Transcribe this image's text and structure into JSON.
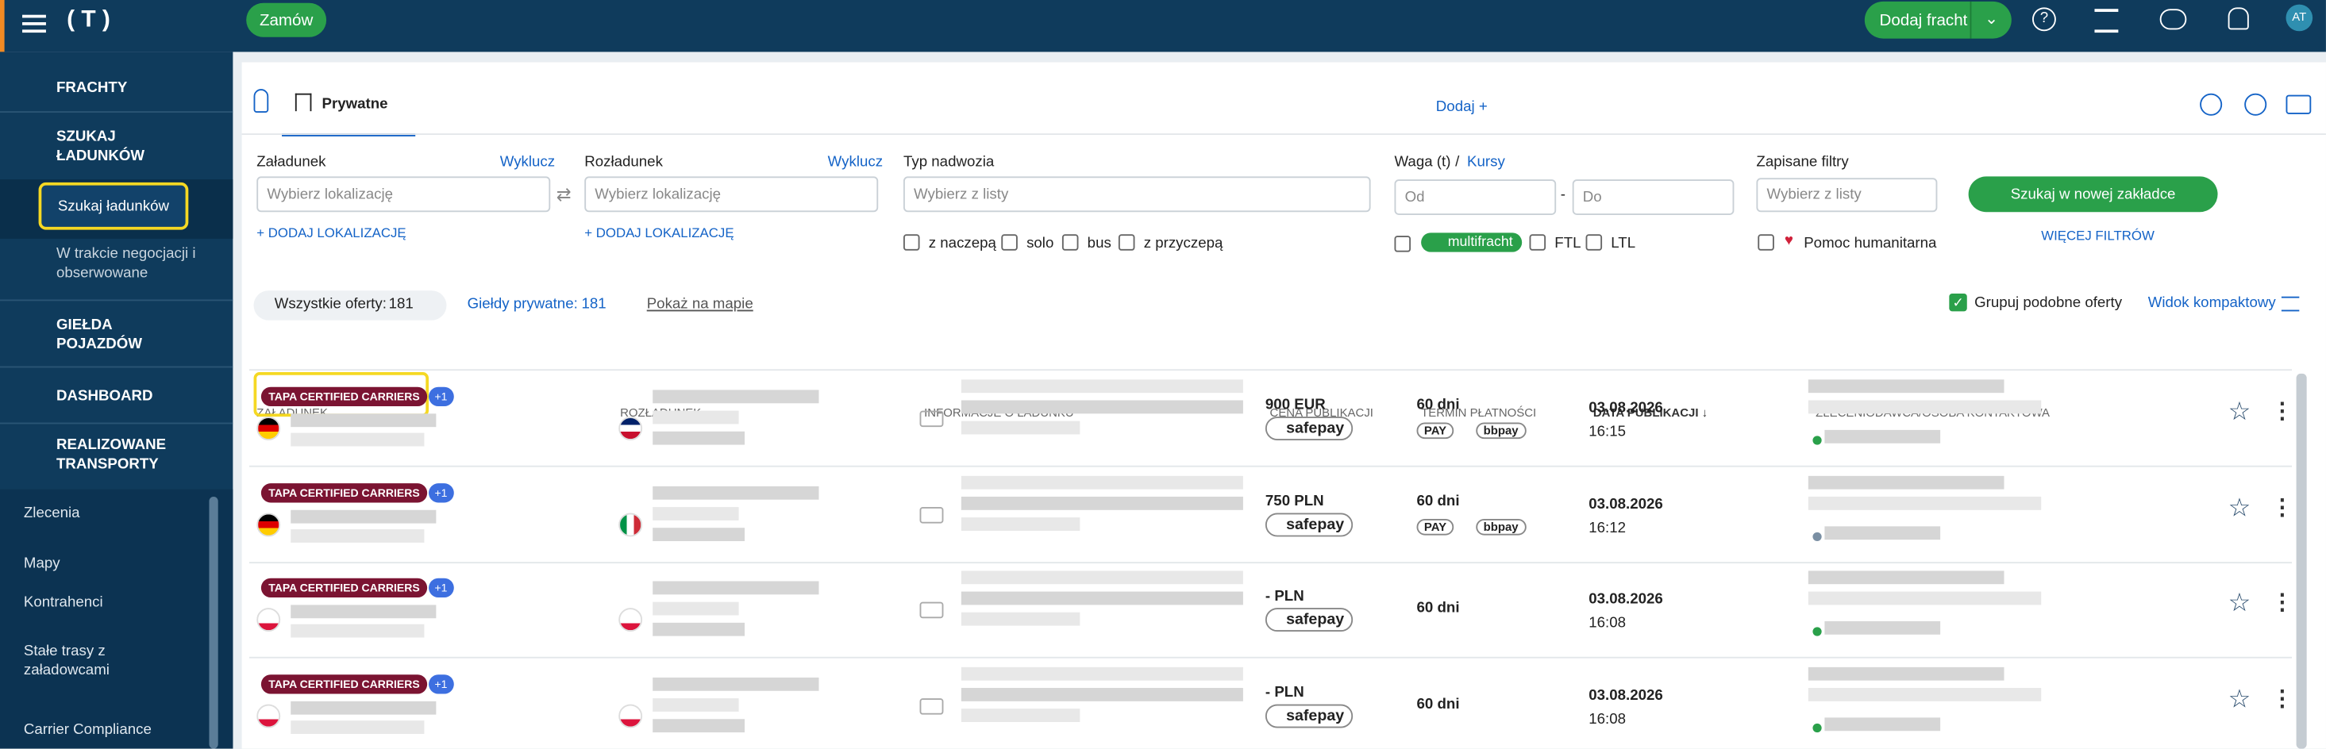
{
  "topbar": {
    "order": "Zamów",
    "add_freight": "Dodaj fracht",
    "avatar": "AT"
  },
  "sidebar": {
    "frachty": "FRACHTY",
    "search": "SZUKAJ ŁADUNKÓW",
    "search_sub": "Szukaj ładunków",
    "negotiation": "W trakcie negocjacji i obserwowane",
    "vehicles": "GIEŁDA POJAZDÓW",
    "dashboard": "DASHBOARD",
    "transports": "REALIZOWANE TRANSPORTY",
    "links": [
      "Zlecenia",
      "Mapy",
      "Kontrahenci",
      "Stałe trasy z załadowcami",
      "Carrier Compliance"
    ]
  },
  "tabs": {
    "private": "Prywatne",
    "add": "Dodaj +"
  },
  "filters": {
    "loading": "Załadunek",
    "exclude": "Wyklucz",
    "loading_placeholder": "Wybierz lokalizację",
    "add_location": "+ DODAJ LOKALIZACJĘ",
    "unloading": "Rozładunek",
    "body": "Typ nadwozia",
    "body_placeholder": "Wybierz z listy",
    "body_options": [
      "z naczepą",
      "solo",
      "bus",
      "z przyczepą"
    ],
    "weight": "Waga (t)",
    "slash": "/",
    "courses": "Kursy",
    "from": "Od",
    "dash": "-",
    "to": "Do",
    "multifracht": "multifracht",
    "ftl": "FTL",
    "ltl": "LTL",
    "saved": "Zapisane filtry",
    "saved_placeholder": "Wybierz z listy",
    "humanitarian": "Pomoc humanitarna",
    "search_new": "Szukaj w nowej zakładce",
    "more": "WIĘCEJ FILTRÓW"
  },
  "summary": {
    "all_label": "Wszystkie oferty:",
    "all_count": 181,
    "private_label": "Giełdy prywatne:",
    "private_count": 181,
    "map": "Pokaż na mapie",
    "group": "Grupuj podobne oferty",
    "compact": "Widok kompaktowy"
  },
  "table": {
    "headers": [
      "ZAŁADUNEK",
      "ROZŁADUNEK",
      "INFORMACJE O ŁADUNKU",
      "CENA PUBLIKACJI",
      "TERMIN PŁATNOŚCI",
      "DATA PUBLIKACJI ↓",
      "ZLECENIODAWCA/OSOBA KONTAKTOWA"
    ],
    "rows": [
      {
        "badge": "TAPA CERTIFIED CARRIERS",
        "extra": "+1",
        "price": "900 EUR",
        "pay": "safepay",
        "term": "60 dni",
        "methods": [
          "PAY",
          "bbpay"
        ],
        "date": "03.08.2026",
        "time": "16:15"
      },
      {
        "badge": "TAPA CERTIFIED CARRIERS",
        "extra": "+1",
        "price": "750 PLN",
        "pay": "safepay",
        "term": "60 dni",
        "methods": [
          "PAY",
          "bbpay"
        ],
        "date": "03.08.2026",
        "time": "16:12"
      },
      {
        "badge": "TAPA CERTIFIED CARRIERS",
        "extra": "+1",
        "price": "- PLN",
        "pay": "safepay",
        "term": "60 dni",
        "methods": [],
        "date": "03.08.2026",
        "time": "16:08"
      },
      {
        "badge": "TAPA CERTIFIED CARRIERS",
        "extra": "+1",
        "price": "- PLN",
        "pay": "safepay",
        "term": "60 dni",
        "methods": [],
        "date": "03.08.2026",
        "time": "16:08"
      }
    ]
  }
}
